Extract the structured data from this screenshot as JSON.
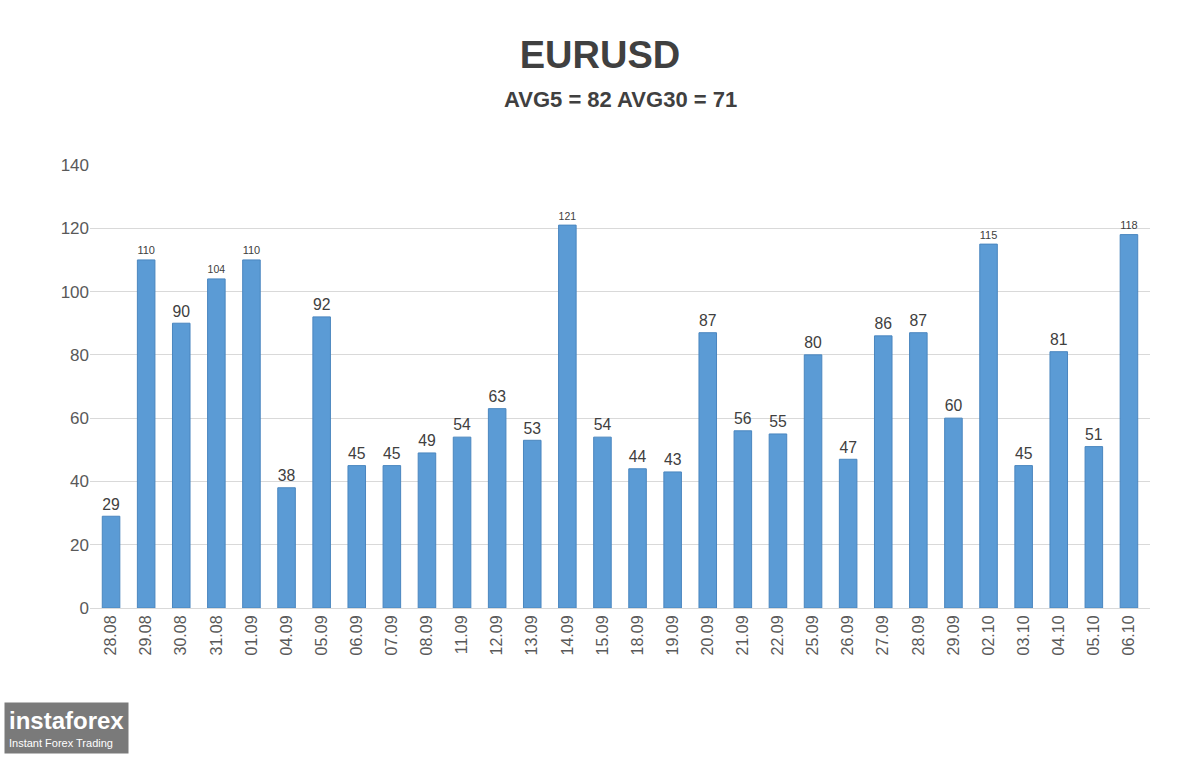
{
  "chart_data": {
    "type": "bar",
    "title": "EURUSD",
    "subtitle": "AVG5 = 82 AVG30 = 71",
    "categories": [
      "28.08",
      "29.08",
      "30.08",
      "31.08",
      "01.09",
      "04.09",
      "05.09",
      "06.09",
      "07.09",
      "08.09",
      "11.09",
      "12.09",
      "13.09",
      "14.09",
      "15.09",
      "18.09",
      "19.09",
      "20.09",
      "21.09",
      "22.09",
      "25.09",
      "26.09",
      "27.09",
      "28.09",
      "29.09",
      "02.10",
      "03.10",
      "04.10",
      "05.10",
      "06.10"
    ],
    "values": [
      29,
      110,
      90,
      104,
      110,
      38,
      92,
      45,
      45,
      49,
      54,
      63,
      53,
      121,
      54,
      44,
      43,
      87,
      56,
      55,
      80,
      47,
      86,
      87,
      60,
      115,
      45,
      81,
      51,
      118
    ],
    "color": "#5b9bd5",
    "ylim": [
      0,
      140
    ],
    "yticks": [
      0,
      20,
      40,
      60,
      80,
      100,
      120,
      140
    ],
    "grid": true,
    "data_labels": true,
    "annotations": [
      {
        "text": "instaforex"
      },
      {
        "text": "Instant Forex Trading"
      }
    ]
  }
}
